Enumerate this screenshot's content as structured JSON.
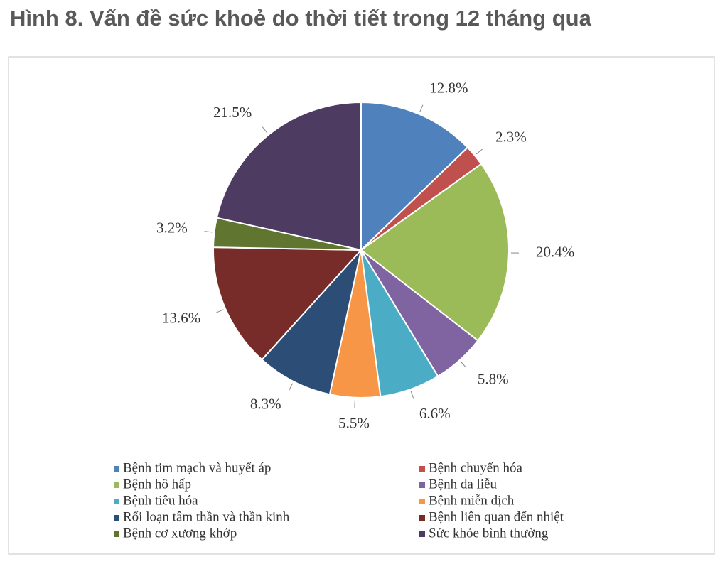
{
  "chart_data": {
    "type": "pie",
    "title": "Hình 8. Vấn đề sức khoẻ do thời tiết trong 12 tháng qua",
    "categories": [
      "Bệnh tim mạch và huyết áp",
      "Bệnh chuyển hóa",
      "Bệnh hô hấp",
      "Bệnh da liễu",
      "Bệnh tiêu hóa",
      "Bệnh miễn dịch",
      "Rối loạn tâm thần và thần kinh",
      "Bệnh liên quan đến nhiệt",
      "Bệnh cơ xương khớp",
      "Sức khỏe bình thường"
    ],
    "values": [
      12.8,
      2.3,
      20.4,
      5.8,
      6.6,
      5.5,
      8.3,
      13.6,
      3.2,
      21.5
    ],
    "value_labels": [
      "12.8%",
      "2.3%",
      "20.4%",
      "5.8%",
      "6.6%",
      "5.5%",
      "8.3%",
      "13.6%",
      "3.2%",
      "21.5%"
    ],
    "colors": [
      "#4f81bd",
      "#c0504d",
      "#9bbb59",
      "#8064a2",
      "#4bacc6",
      "#f79646",
      "#2c4d75",
      "#772c2a",
      "#5f7530",
      "#4d3b62"
    ]
  }
}
